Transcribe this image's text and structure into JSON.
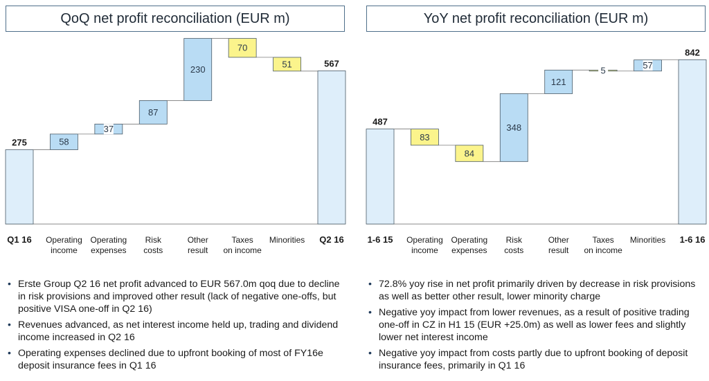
{
  "chart_data": [
    {
      "type": "waterfall",
      "title": "QoQ net profit reconciliation (EUR m)",
      "categories": [
        "Q1 16",
        "Operating income",
        "Operating expenses",
        "Risk costs",
        "Other result",
        "Taxes on income",
        "Minorities",
        "Q2 16"
      ],
      "steps": [
        {
          "label": "Q1 16",
          "value": 275,
          "kind": "total"
        },
        {
          "label": "Operating income",
          "value": 58,
          "kind": "increase"
        },
        {
          "label": "Operating expenses",
          "value": 37,
          "kind": "increase"
        },
        {
          "label": "Risk costs",
          "value": 87,
          "kind": "increase"
        },
        {
          "label": "Other result",
          "value": 230,
          "kind": "increase"
        },
        {
          "label": "Taxes on income",
          "value": 70,
          "kind": "decrease"
        },
        {
          "label": "Minorities",
          "value": 51,
          "kind": "decrease"
        },
        {
          "label": "Q2 16",
          "value": 567,
          "kind": "total"
        }
      ],
      "ylim": [
        0,
        650
      ],
      "colors": {
        "total": "#deeefa",
        "increase": "#b9dcf4",
        "decrease": "#fbf48c",
        "border": "#4a5a66"
      }
    },
    {
      "type": "waterfall",
      "title": "YoY net profit reconciliation (EUR m)",
      "categories": [
        "1-6 15",
        "Operating income",
        "Operating expenses",
        "Risk costs",
        "Other result",
        "Taxes on income",
        "Minorities",
        "1-6 16"
      ],
      "steps": [
        {
          "label": "1-6 15",
          "value": 487,
          "kind": "total"
        },
        {
          "label": "Operating income",
          "value": 83,
          "kind": "decrease"
        },
        {
          "label": "Operating expenses",
          "value": 84,
          "kind": "decrease"
        },
        {
          "label": "Risk costs",
          "value": 348,
          "kind": "increase"
        },
        {
          "label": "Other result",
          "value": 121,
          "kind": "increase"
        },
        {
          "label": "Taxes on income",
          "value": 5,
          "kind": "decrease"
        },
        {
          "label": "Minorities",
          "value": 57,
          "kind": "increase"
        },
        {
          "label": "1-6 16",
          "value": 842,
          "kind": "total"
        }
      ],
      "ylim": [
        0,
        900
      ],
      "colors": {
        "total": "#deeefa",
        "increase": "#b9dcf4",
        "decrease": "#fbf48c",
        "border": "#4a5a66"
      }
    }
  ],
  "left_bullets": [
    "Erste Group Q2 16 net profit advanced to EUR 567.0m qoq due to decline in risk provisions and improved other result (lack of negative one-offs, but positive VISA one-off in Q2 16)",
    "Revenues advanced, as net interest income held up, trading and dividend income increased in Q2 16",
    "Operating expenses declined due to upfront booking of most of FY16e deposit insurance fees in Q1 16"
  ],
  "right_bullets": [
    "72.8% yoy rise in net profit primarily driven by decrease in risk provisions as well as better other result, lower minority charge",
    "Negative yoy impact from lower revenues, as a result of positive trading one-off in CZ in H1 15 (EUR +25.0m) as well as lower fees and slightly lower net interest income",
    "Negative yoy impact from costs partly due to upfront booking of deposit insurance fees, primarily in Q1 16"
  ]
}
